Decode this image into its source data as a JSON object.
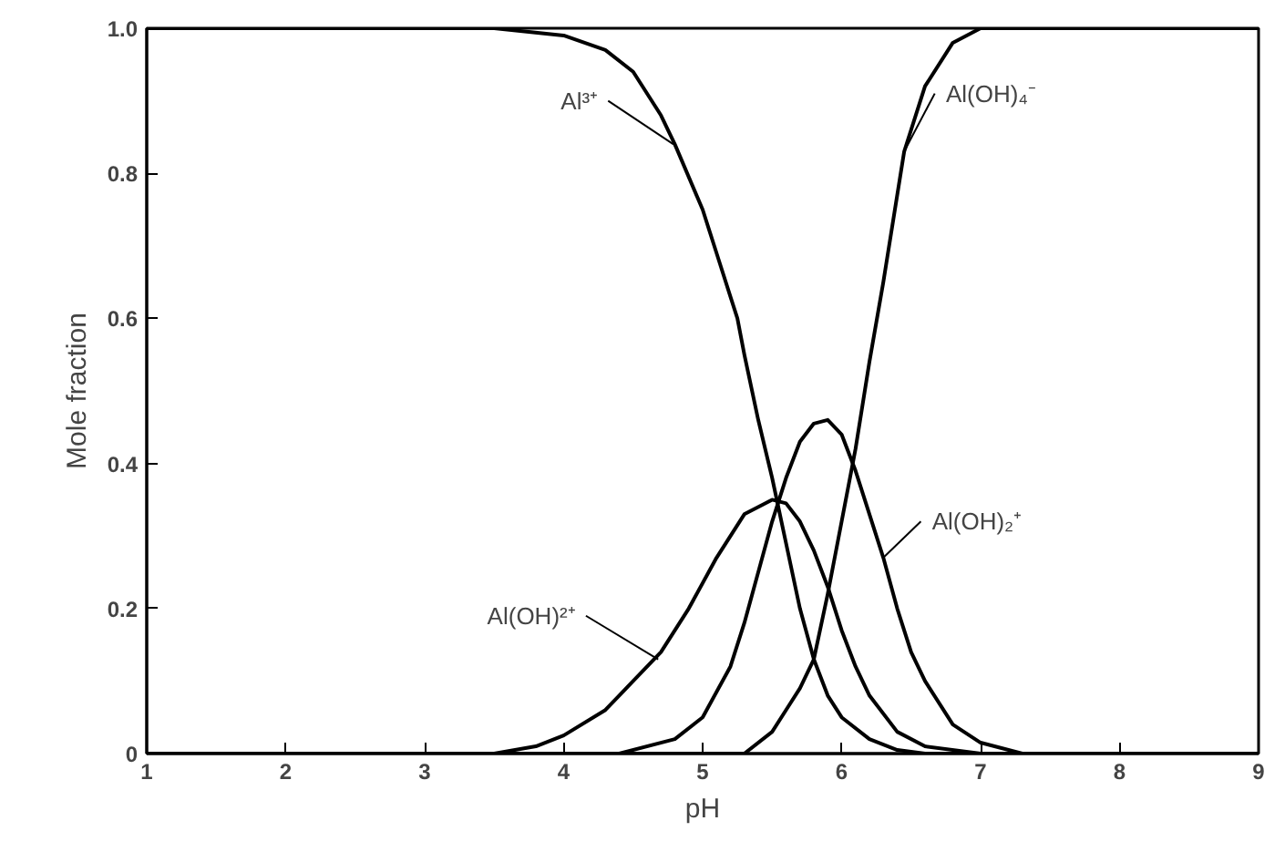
{
  "chart_data": {
    "type": "line",
    "xlabel": "pH",
    "ylabel": "Mole fraction",
    "xlim": [
      1,
      9
    ],
    "ylim": [
      0,
      1
    ],
    "xticks": [
      1,
      2,
      3,
      4,
      5,
      6,
      7,
      8,
      9
    ],
    "yticks": [
      0,
      0.2,
      0.4,
      0.6,
      0.8,
      {
        "value": 1,
        "label": "1.0"
      }
    ],
    "grid": false,
    "line_style": "solid",
    "series": [
      {
        "color": "#000000",
        "x": [
          1,
          2,
          3,
          3.5,
          4,
          4.3,
          4.5,
          4.7,
          4.8,
          5.0,
          5.1,
          5.2,
          5.25,
          5.3,
          5.4,
          5.5,
          5.6,
          5.7,
          5.8,
          5.9,
          6.0,
          6.2,
          6.4,
          6.6,
          7,
          8,
          9
        ],
        "values": [
          1,
          1,
          1,
          1,
          0.99,
          0.97,
          0.94,
          0.88,
          0.84,
          0.75,
          0.69,
          0.63,
          0.6,
          0.55,
          0.46,
          0.38,
          0.29,
          0.2,
          0.13,
          0.08,
          0.05,
          0.02,
          0.005,
          0,
          0,
          0,
          0
        ]
      },
      {
        "color": "#000000",
        "x": [
          1,
          2,
          3,
          3.5,
          3.8,
          4.0,
          4.3,
          4.5,
          4.7,
          4.9,
          5.1,
          5.3,
          5.5,
          5.6,
          5.7,
          5.8,
          5.9,
          6.0,
          6.1,
          6.2,
          6.4,
          6.6,
          7,
          8,
          9
        ],
        "values": [
          0,
          0,
          0,
          0,
          0.01,
          0.025,
          0.06,
          0.1,
          0.14,
          0.2,
          0.27,
          0.33,
          0.35,
          0.345,
          0.32,
          0.28,
          0.23,
          0.17,
          0.12,
          0.08,
          0.03,
          0.01,
          0,
          0,
          0
        ]
      },
      {
        "color": "#000000",
        "x": [
          1,
          2,
          3,
          4,
          4.4,
          4.8,
          5.0,
          5.2,
          5.3,
          5.4,
          5.5,
          5.6,
          5.7,
          5.8,
          5.9,
          6.0,
          6.1,
          6.2,
          6.3,
          6.4,
          6.5,
          6.6,
          6.8,
          7.0,
          7.3,
          8,
          9
        ],
        "values": [
          0,
          0,
          0,
          0,
          0,
          0.02,
          0.05,
          0.12,
          0.18,
          0.25,
          0.32,
          0.38,
          0.43,
          0.455,
          0.46,
          0.44,
          0.39,
          0.33,
          0.27,
          0.2,
          0.14,
          0.1,
          0.04,
          0.015,
          0,
          0,
          0
        ]
      },
      {
        "color": "#000000",
        "x": [
          1,
          2,
          3,
          4,
          5,
          5.3,
          5.5,
          5.6,
          5.7,
          5.8,
          5.9,
          6.0,
          6.1,
          6.2,
          6.3,
          6.45,
          6.6,
          6.8,
          7.0,
          8,
          9
        ],
        "values": [
          0,
          0,
          0,
          0,
          0,
          0,
          0.03,
          0.06,
          0.09,
          0.13,
          0.22,
          0.32,
          0.42,
          0.54,
          0.65,
          0.83,
          0.92,
          0.98,
          1,
          1,
          1
        ]
      }
    ],
    "annotations": [
      {
        "text": "Al³⁺",
        "x": 4.79,
        "y": 0.84
      },
      {
        "text": "Al(OH)₄⁻",
        "x": 6.45,
        "y": 0.83
      },
      {
        "text": "Al(OH)²⁺",
        "x": 4.68,
        "y": 0.13
      },
      {
        "text": "Al(OH)₂⁺",
        "x": 6.3,
        "y": 0.27
      }
    ]
  }
}
